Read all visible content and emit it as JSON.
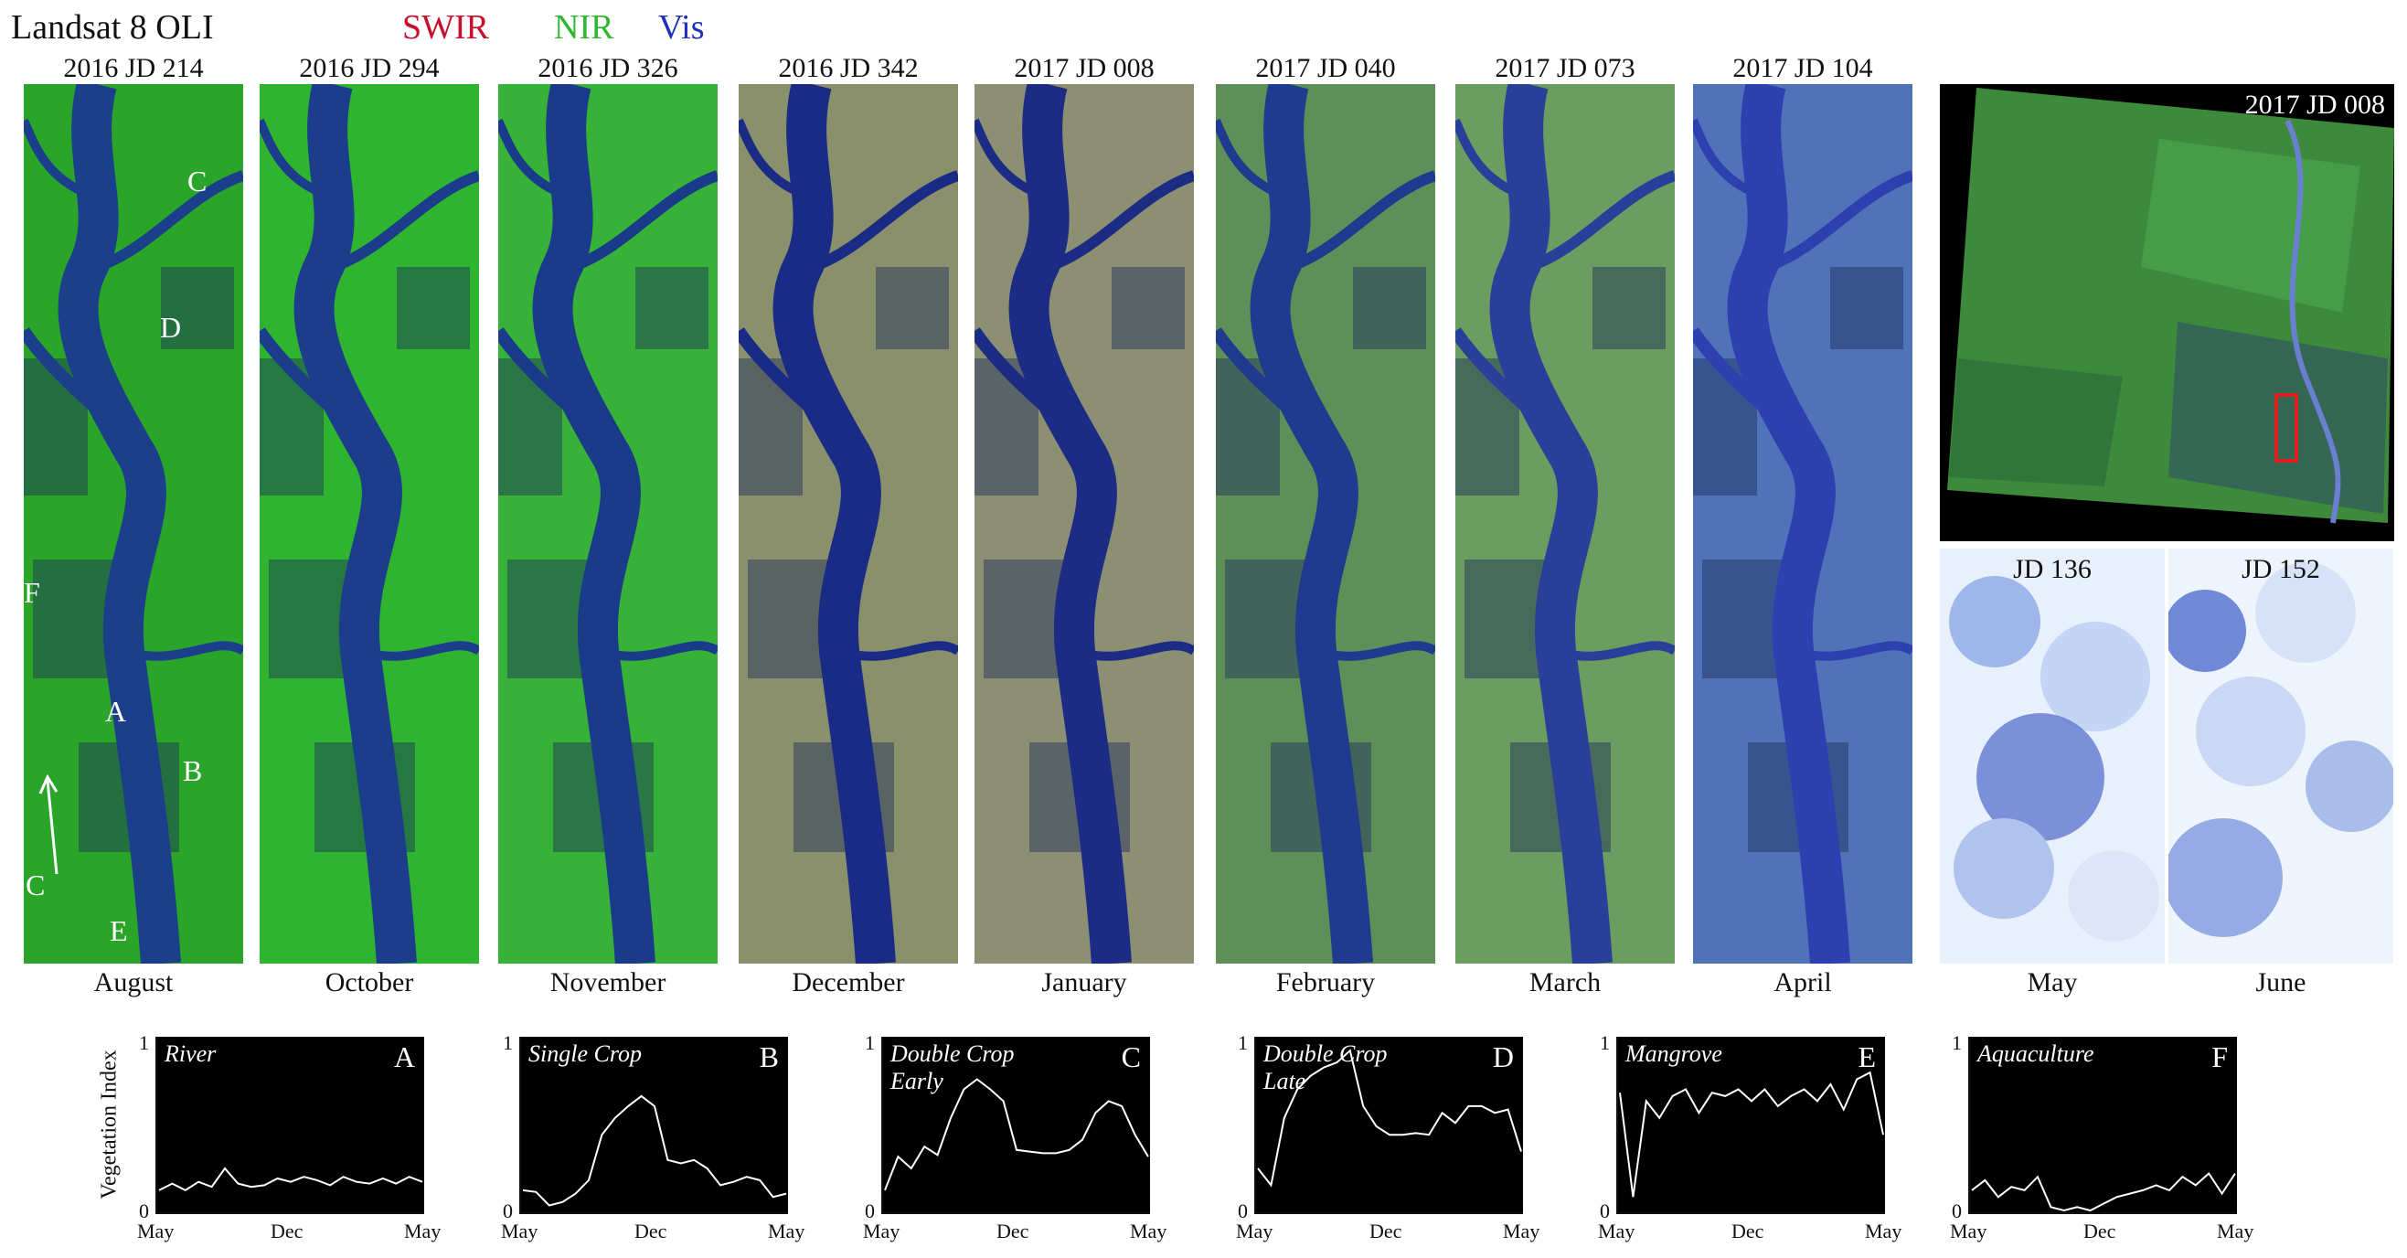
{
  "header": {
    "title": "Landsat 8 OLI",
    "bands": [
      {
        "label": "SWIR",
        "color": "#c8102e"
      },
      {
        "label": "NIR",
        "color": "#2db82d"
      },
      {
        "label": "Vis",
        "color": "#1e2fb8"
      }
    ]
  },
  "panels": [
    {
      "date": "2016 JD 214",
      "month": "August",
      "tone": "#2aa52a",
      "water": "#1b3f8a"
    },
    {
      "date": "2016 JD 294",
      "month": "October",
      "tone": "#2fb42f",
      "water": "#1c3d8c"
    },
    {
      "date": "2016 JD 326",
      "month": "November",
      "tone": "#37b138",
      "water": "#1a3a8a"
    },
    {
      "date": "2016 JD 342",
      "month": "December",
      "tone": "#8a8f6c",
      "water": "#1a2b86"
    },
    {
      "date": "2017 JD 008",
      "month": "January",
      "tone": "#8d8f72",
      "water": "#1c2c85"
    },
    {
      "date": "2017 JD 040",
      "month": "February",
      "tone": "#5f8f58",
      "water": "#1f3a8e"
    },
    {
      "date": "2017 JD 073",
      "month": "March",
      "tone": "#6b9c60",
      "water": "#2a3f9a"
    },
    {
      "date": "2017 JD 104",
      "month": "April",
      "tone": "#4f72b8",
      "water": "#2e3fb0"
    }
  ],
  "map_labels": [
    "A",
    "B",
    "C",
    "C",
    "D",
    "E",
    "F"
  ],
  "overview": {
    "date": "2017 JD 008",
    "tone": "#3d8a3d"
  },
  "clouds": [
    {
      "date": "JD 136",
      "month": "May"
    },
    {
      "date": "JD 152",
      "month": "June"
    }
  ],
  "plots_axis": {
    "ylabel": "Vegetation Index",
    "ymax": "1",
    "ymin": "0",
    "xticks": [
      "May",
      "Dec",
      "May"
    ]
  },
  "chart_data": [
    {
      "type": "line",
      "title": "River",
      "letter": "A",
      "ylim": [
        0,
        1
      ],
      "values": [
        0.12,
        0.16,
        0.12,
        0.17,
        0.14,
        0.25,
        0.16,
        0.14,
        0.15,
        0.19,
        0.17,
        0.2,
        0.18,
        0.15,
        0.2,
        0.17,
        0.16,
        0.19,
        0.16,
        0.2,
        0.17
      ]
    },
    {
      "type": "line",
      "title": "Single Crop",
      "letter": "B",
      "ylim": [
        0,
        1
      ],
      "values": [
        0.12,
        0.11,
        0.03,
        0.05,
        0.1,
        0.18,
        0.45,
        0.55,
        0.62,
        0.68,
        0.62,
        0.3,
        0.28,
        0.3,
        0.25,
        0.15,
        0.17,
        0.2,
        0.18,
        0.08,
        0.1
      ]
    },
    {
      "type": "line",
      "title": "Double Crop Early",
      "letter": "C",
      "ylim": [
        0,
        1
      ],
      "values": [
        0.12,
        0.32,
        0.25,
        0.38,
        0.33,
        0.55,
        0.72,
        0.78,
        0.72,
        0.65,
        0.36,
        0.35,
        0.34,
        0.34,
        0.36,
        0.42,
        0.58,
        0.65,
        0.62,
        0.45,
        0.32
      ]
    },
    {
      "type": "line",
      "title": "Double Crop Late",
      "letter": "D",
      "ylim": [
        0,
        1
      ],
      "values": [
        0.25,
        0.15,
        0.55,
        0.72,
        0.8,
        0.85,
        0.88,
        0.95,
        0.62,
        0.5,
        0.45,
        0.45,
        0.46,
        0.45,
        0.58,
        0.52,
        0.62,
        0.62,
        0.58,
        0.6,
        0.35
      ]
    },
    {
      "type": "line",
      "title": "Mangrove",
      "letter": "E",
      "ylim": [
        0,
        1
      ],
      "values": [
        0.7,
        0.08,
        0.65,
        0.55,
        0.68,
        0.72,
        0.58,
        0.7,
        0.68,
        0.72,
        0.65,
        0.72,
        0.62,
        0.68,
        0.72,
        0.65,
        0.75,
        0.6,
        0.78,
        0.82,
        0.45
      ]
    },
    {
      "type": "line",
      "title": "Aquaculture",
      "letter": "F",
      "ylim": [
        0,
        1
      ],
      "values": [
        0.12,
        0.18,
        0.08,
        0.14,
        0.12,
        0.2,
        0.02,
        0.0,
        0.02,
        0.0,
        0.04,
        0.08,
        0.1,
        0.12,
        0.15,
        0.12,
        0.2,
        0.15,
        0.22,
        0.1,
        0.22
      ]
    }
  ]
}
